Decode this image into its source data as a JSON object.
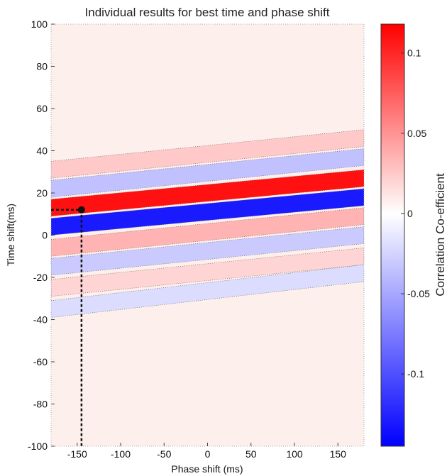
{
  "chart_data": {
    "type": "heatmap",
    "title": "Individual results for best time and phase shift",
    "xlabel": "Phase shift (ms)",
    "ylabel": "Time shift(ms)",
    "xlim": [
      -180,
      180
    ],
    "ylim": [
      -100,
      100
    ],
    "xticks": [
      "-150",
      "-100",
      "-50",
      "0",
      "50",
      "100",
      "150"
    ],
    "xtick_values": [
      -150,
      -100,
      -50,
      0,
      50,
      100,
      150
    ],
    "yticks": [
      "100",
      "80",
      "60",
      "40",
      "20",
      "0",
      "-20",
      "-40",
      "-60",
      "-80",
      "-100"
    ],
    "ytick_values": [
      100,
      80,
      60,
      40,
      20,
      0,
      -20,
      -40,
      -60,
      -80,
      -100
    ],
    "colorbar": {
      "label": "Correlation Co-efficient",
      "range": [
        -0.145,
        0.118
      ],
      "ticks": [
        "0.1",
        "0.05",
        "0",
        "-0.05",
        "-0.1"
      ],
      "tick_values": [
        0.1,
        0.05,
        0,
        -0.05,
        -0.1
      ]
    },
    "bands": [
      {
        "center_at_xmin": 31,
        "center_at_xmax": 46,
        "value": 0.025,
        "half_width": 4
      },
      {
        "center_at_xmin": 22,
        "center_at_xmax": 37,
        "value": -0.035,
        "half_width": 4
      },
      {
        "center_at_xmin": 13,
        "center_at_xmax": 27,
        "value": 0.11,
        "half_width": 4
      },
      {
        "center_at_xmin": 4,
        "center_at_xmax": 18,
        "value": -0.13,
        "half_width": 4
      },
      {
        "center_at_xmin": -6,
        "center_at_xmax": 9,
        "value": 0.035,
        "half_width": 4
      },
      {
        "center_at_xmin": -15,
        "center_at_xmax": 0,
        "value": -0.03,
        "half_width": 4
      },
      {
        "center_at_xmin": -25,
        "center_at_xmax": -10,
        "value": 0.02,
        "half_width": 4
      },
      {
        "center_at_xmin": -35,
        "center_at_xmax": -18,
        "value": -0.02,
        "half_width": 4
      }
    ],
    "background_value": 0.006,
    "peak": {
      "x": -145,
      "y": 12
    }
  }
}
